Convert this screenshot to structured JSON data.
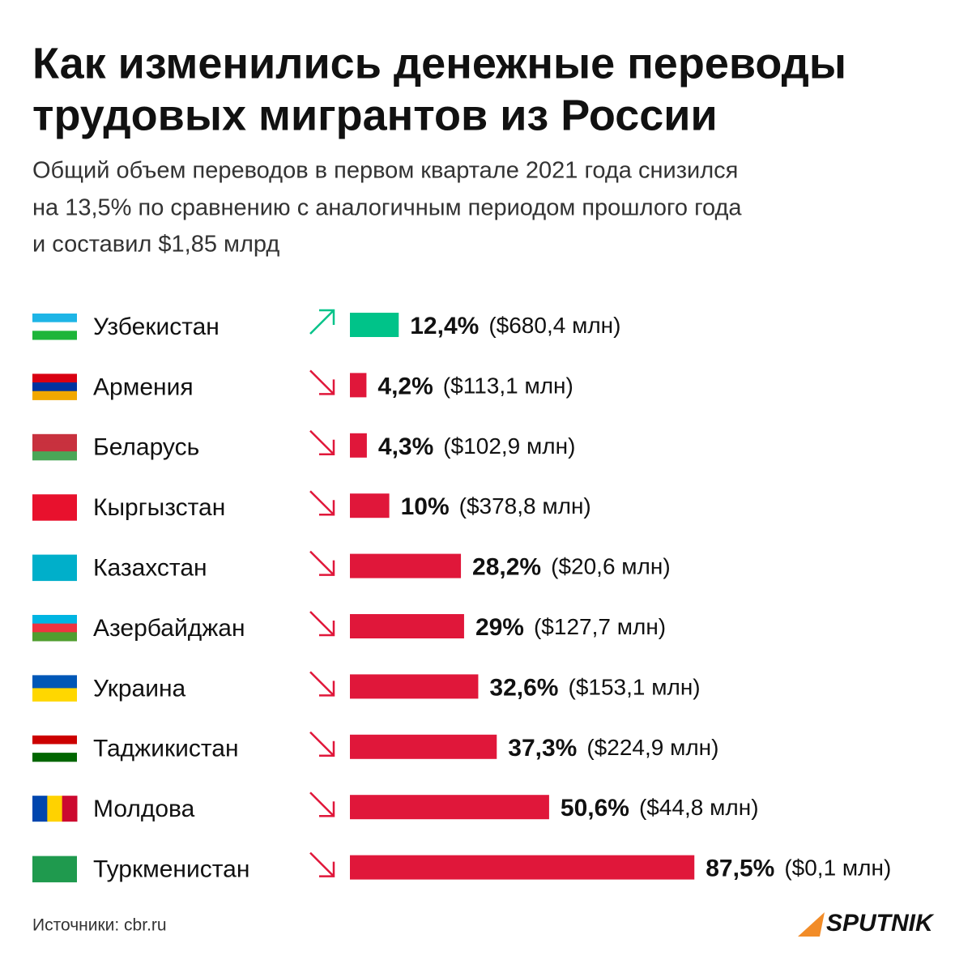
{
  "chart_data": {
    "type": "bar",
    "title": [
      "Как изменились денежные переводы",
      "трудовых мигрантов из России"
    ],
    "subtitle": [
      "Общий объем переводов в первом квартале 2021 года снизился",
      "на 13,5% по сравнению с аналогичным периодом прошлого года",
      "и составил $1,85 млрд"
    ],
    "categories": [
      "Узбекистан",
      "Армения",
      "Беларусь",
      "Кыргызстан",
      "Казахстан",
      "Азербайджан",
      "Украина",
      "Таджикистан",
      "Молдова",
      "Туркменистан"
    ],
    "values": [
      12.4,
      4.2,
      4.3,
      10,
      28.2,
      29,
      32.6,
      37.3,
      50.6,
      87.5
    ],
    "value_labels": [
      "12,4%",
      "4,2%",
      "4,3%",
      "10%",
      "28,2%",
      "29%",
      "32,6%",
      "37,3%",
      "50,6%",
      "87,5%"
    ],
    "amounts": [
      "($680,4 млн)",
      "($113,1 млн)",
      "($102,9 млн)",
      "($378,8 млн)",
      "($20,6 млн)",
      "($127,7 млн)",
      "($153,1 млн)",
      "($224,9 млн)",
      "($44,8 млн)",
      "($0,1 млн)"
    ],
    "directions": [
      "up",
      "down",
      "down",
      "down",
      "down",
      "down",
      "down",
      "down",
      "down",
      "down"
    ],
    "colors": {
      "up": "#00c389",
      "down": "#e0173a"
    },
    "source": "Источники: cbr.ru",
    "brand": "SPUTNIK"
  }
}
